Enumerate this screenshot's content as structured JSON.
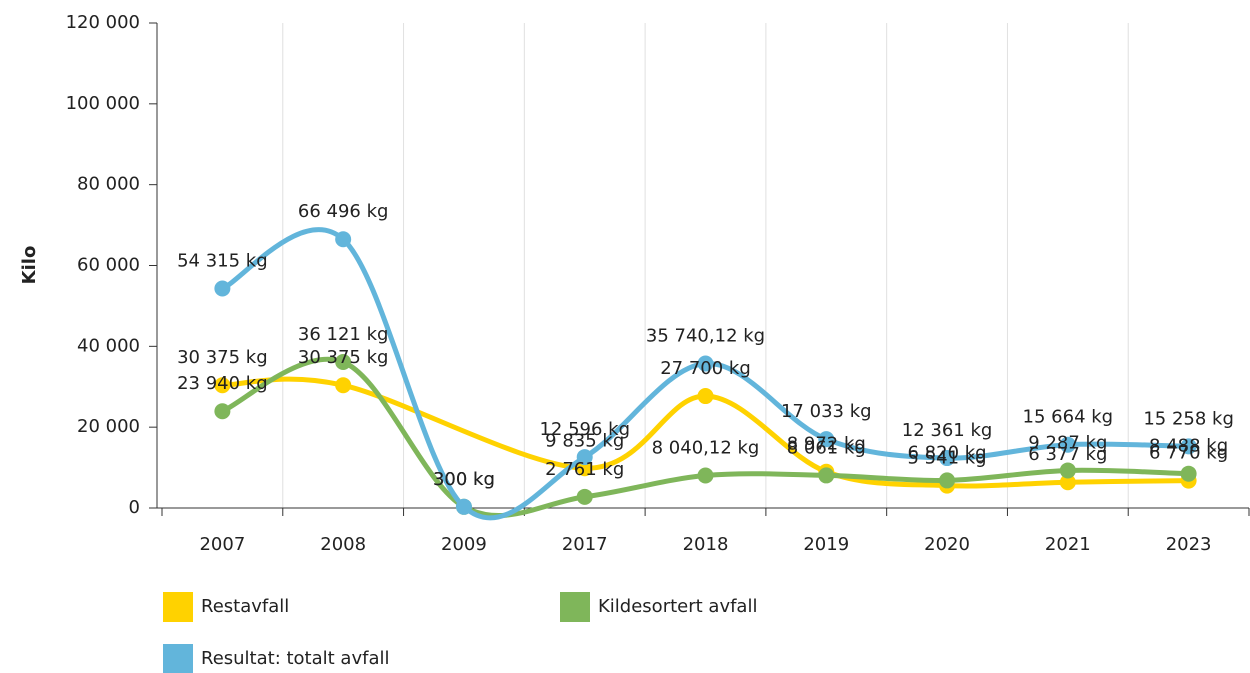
{
  "chart_data": {
    "type": "line",
    "ylabel": "Kilo",
    "categories": [
      "2007",
      "2008",
      "2009",
      "2017",
      "2018",
      "2019",
      "2020",
      "2021",
      "2023"
    ],
    "series": [
      {
        "name": "Restavfall",
        "color": "#ffd200",
        "values": [
          30375,
          30375,
          null,
          9835,
          27700,
          8972,
          5541,
          6377,
          6770
        ],
        "value_labels": [
          "30 375 kg",
          "30 375 kg",
          null,
          "9 835 kg",
          "27 700 kg",
          "8 972 kg",
          "5 541 kg",
          "6 377 kg",
          "6 770 kg"
        ]
      },
      {
        "name": "Kildesortert avfall",
        "color": "#7fb65a",
        "values": [
          23940,
          36121,
          300,
          2761,
          8040.12,
          8061,
          6820,
          9287,
          8488
        ],
        "value_labels": [
          "23 940 kg",
          "36 121 kg",
          "300 kg",
          "2 761 kg",
          "8 040,12 kg",
          "8 061 kg",
          "6 820 kg",
          "9 287 kg",
          "8 488 kg"
        ]
      },
      {
        "name": "Resultat: totalt avfall",
        "color": "#62b5db",
        "values": [
          54315,
          66496,
          300,
          12596,
          35740.12,
          17033,
          12361,
          15664,
          15258
        ],
        "value_labels": [
          "54 315 kg",
          "66 496 kg",
          "300 kg",
          "12 596 kg",
          "35 740,12 kg",
          "17 033 kg",
          "12 361 kg",
          "15 664 kg",
          "15 258 kg"
        ]
      }
    ],
    "connect_nulls": true,
    "ylim": [
      0,
      120000
    ],
    "yticks": [
      0,
      {
        "value": 20000,
        "label": "20 000"
      },
      {
        "value": 40000,
        "label": "40 000"
      },
      {
        "value": 60000,
        "label": "60 000"
      },
      {
        "value": 80000,
        "label": "80 000"
      },
      {
        "value": 100000,
        "label": "100 000"
      },
      {
        "value": 120000,
        "label": "120 000"
      }
    ]
  }
}
